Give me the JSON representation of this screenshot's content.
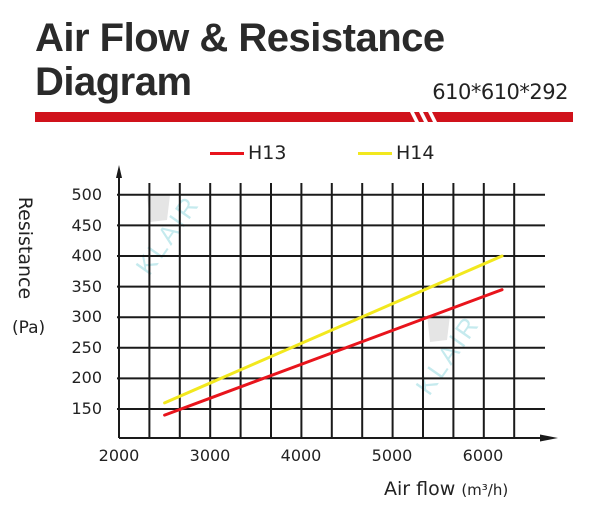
{
  "header": {
    "title_line1": "Air Flow & Resistance",
    "title_line2": "Diagram",
    "dimensions": "610*610*292",
    "accent_color": "#d0121b"
  },
  "legend": [
    {
      "label": "H13",
      "color": "#e8141c"
    },
    {
      "label": "H14",
      "color": "#f2e81e"
    }
  ],
  "axes": {
    "ylabel": "Resistance",
    "yunit": "(Pa)",
    "xlabel": "Air flow",
    "xunit": "(m³/h)",
    "yticks": [
      "500",
      "450",
      "400",
      "350",
      "300",
      "250",
      "200",
      "150"
    ],
    "xticks": [
      "2000",
      "3000",
      "4000",
      "5000",
      "6000"
    ]
  },
  "watermark": {
    "text": "KLAIR",
    "color": "#9fdde3"
  },
  "chart_data": {
    "type": "line",
    "title": "Air Flow & Resistance Diagram",
    "subtitle": "610*610*292",
    "xlabel": "Air flow (m³/h)",
    "ylabel": "Resistance (Pa)",
    "xlim": [
      2000,
      6700
    ],
    "ylim": [
      100,
      500
    ],
    "xticks": [
      2000,
      3000,
      4000,
      5000,
      6000
    ],
    "yticks": [
      150,
      200,
      250,
      300,
      350,
      400,
      450,
      500
    ],
    "grid": true,
    "legend_position": "top",
    "series": [
      {
        "name": "H13",
        "color": "#e8141c",
        "x": [
          2500,
          6200
        ],
        "y": [
          140,
          345
        ]
      },
      {
        "name": "H14",
        "color": "#f2e81e",
        "x": [
          2500,
          6200
        ],
        "y": [
          160,
          400
        ]
      }
    ]
  }
}
